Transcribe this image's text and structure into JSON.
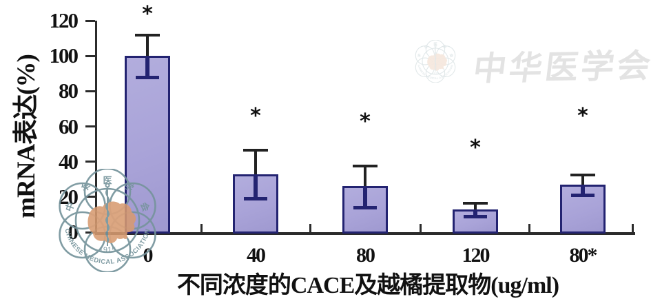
{
  "chart_data": {
    "type": "bar",
    "title": "",
    "xlabel": "不同浓度的CACE及越橘提取物(ug/ml)",
    "ylabel": "mRNA表达(%)",
    "categories": [
      "0",
      "40",
      "80",
      "120",
      "80*"
    ],
    "values": [
      100,
      33,
      26,
      13,
      27
    ],
    "errors": [
      12,
      14,
      12,
      4,
      6
    ],
    "significance": [
      "*",
      "*",
      "*",
      "*",
      "*"
    ],
    "sig_y": [
      126,
      68,
      65,
      50,
      68
    ],
    "ylim": [
      0,
      120
    ],
    "yticks": [
      0,
      20,
      40,
      60,
      80,
      100,
      120
    ],
    "grid": false,
    "bar_fill": "#a9a3d8",
    "bar_border": "#232371",
    "axis_color": "#2b2b2b",
    "error_color": "#222222"
  },
  "watermarks": {
    "logo": {
      "org_chars": [
        "中",
        "华",
        "医",
        "学",
        "会"
      ],
      "org_en": "CHINESE MEDICAL ASSOCIATION",
      "year": "1915",
      "teal": "#76949c",
      "map_orange": "#d79a70"
    },
    "top_right_text": "中华医学会",
    "gray": "#e3e3e3"
  }
}
